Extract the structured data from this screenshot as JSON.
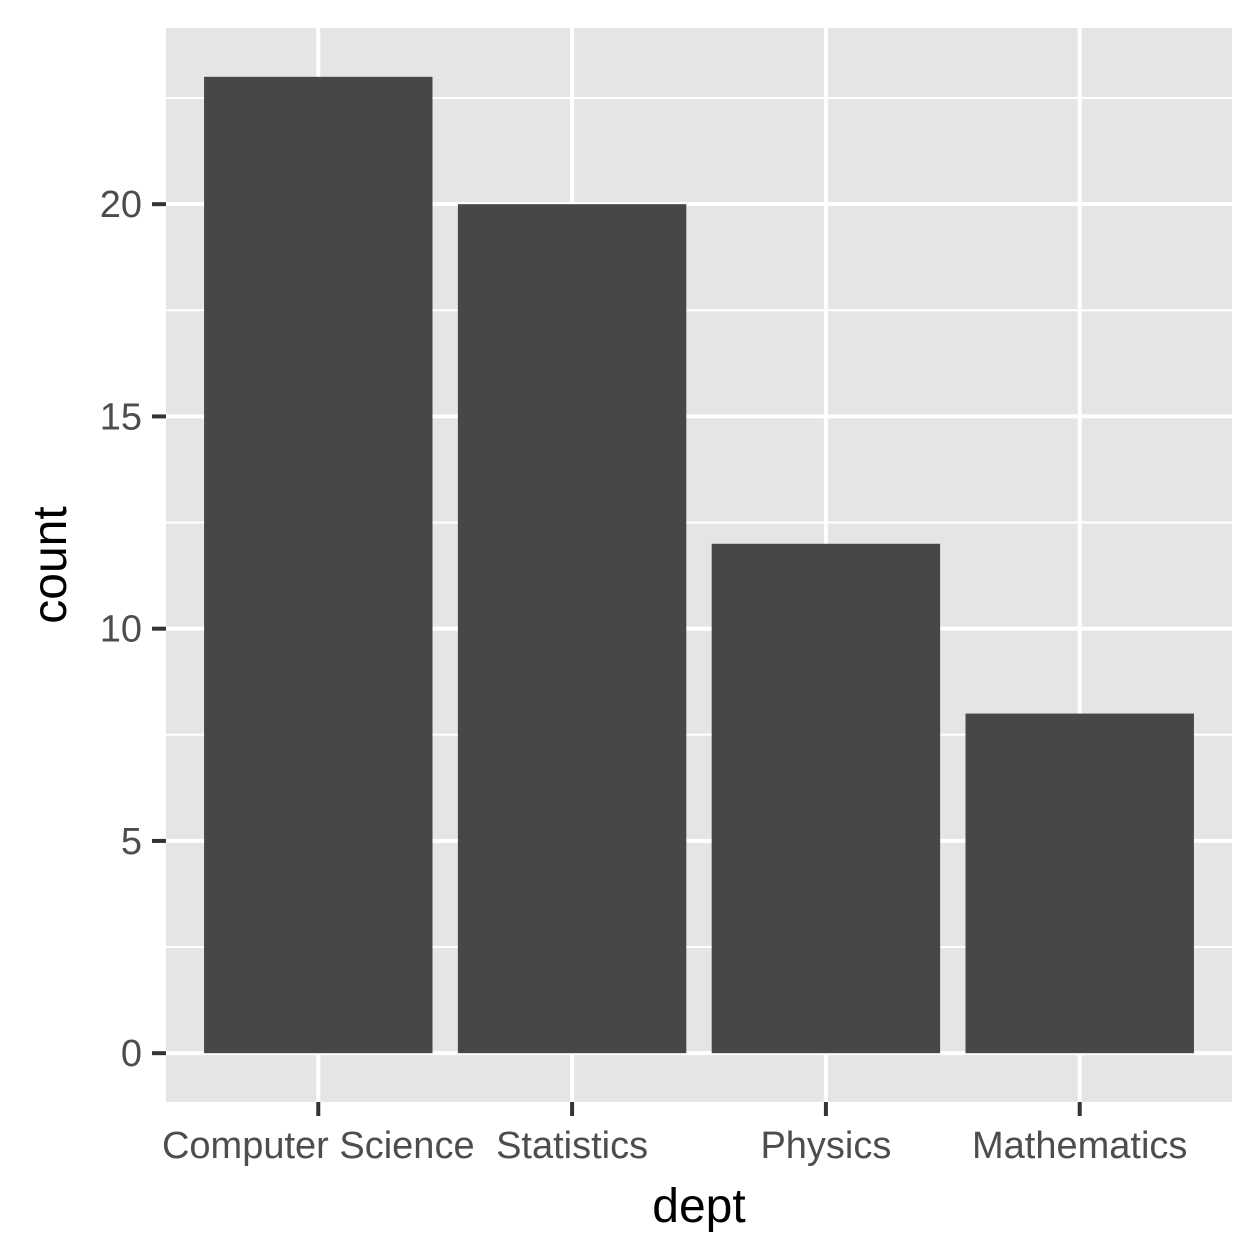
{
  "chart_data": {
    "type": "bar",
    "categories": [
      "Computer Science",
      "Statistics",
      "Physics",
      "Mathematics"
    ],
    "values": [
      23,
      20,
      12,
      8
    ],
    "title": "",
    "xlabel": "dept",
    "ylabel": "count",
    "ylim": [
      -1.15,
      24.15
    ],
    "yticks": [
      0,
      5,
      10,
      15,
      20
    ],
    "grid": true,
    "legend": "none",
    "colors": {
      "panel": "#e5e5e5",
      "grid": "#ffffff",
      "bar": "#474747",
      "tick": "#333333",
      "tick_text": "#4d4d4d"
    }
  }
}
